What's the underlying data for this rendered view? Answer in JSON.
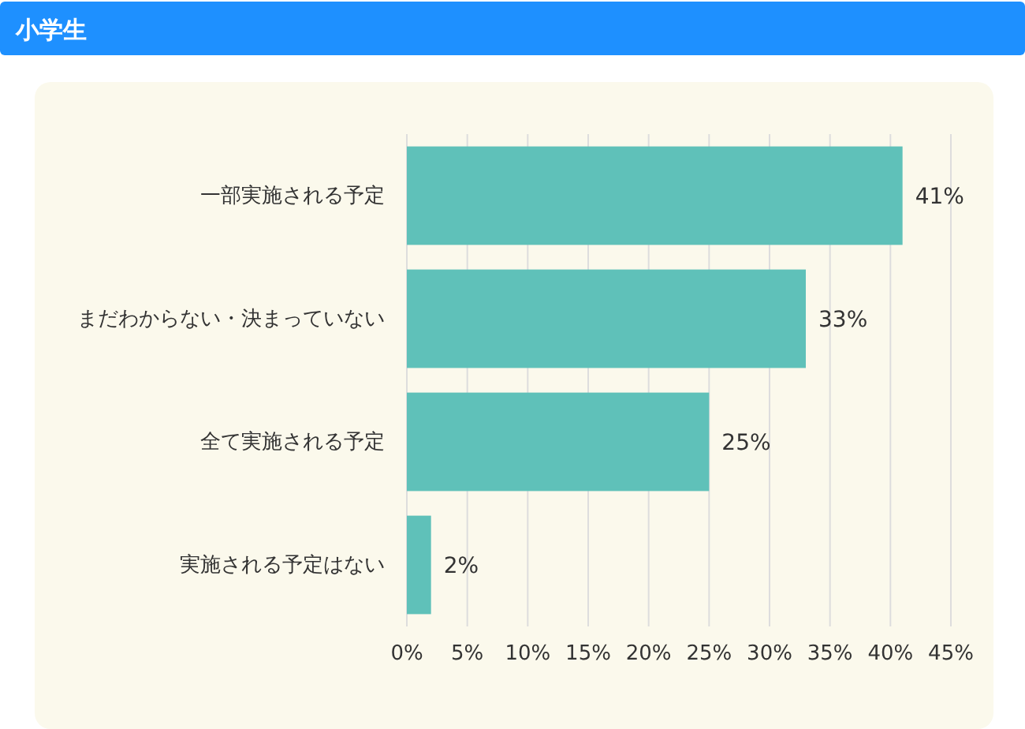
{
  "chart_data": {
    "type": "bar",
    "orientation": "horizontal",
    "title": "小学生",
    "categories": [
      "一部実施される予定",
      "まだわからない・決まっていない",
      "全て実施される予定",
      "実施される予定はない"
    ],
    "values": [
      41,
      33,
      25,
      2
    ],
    "value_labels": [
      "41%",
      "33%",
      "25%",
      "2%"
    ],
    "color": "#5fc1b9",
    "xlim": [
      0,
      45
    ],
    "xticks": [
      {
        "value": 0,
        "label": "0%"
      },
      {
        "value": 5,
        "label": "5%"
      },
      {
        "value": 10,
        "label": "10%"
      },
      {
        "value": 15,
        "label": "15%"
      },
      {
        "value": 20,
        "label": "20%"
      },
      {
        "value": 25,
        "label": "25%"
      },
      {
        "value": 30,
        "label": "30%"
      },
      {
        "value": 35,
        "label": "35%"
      },
      {
        "value": 40,
        "label": "40%"
      },
      {
        "value": 45,
        "label": "45%"
      }
    ],
    "grid": "x"
  }
}
